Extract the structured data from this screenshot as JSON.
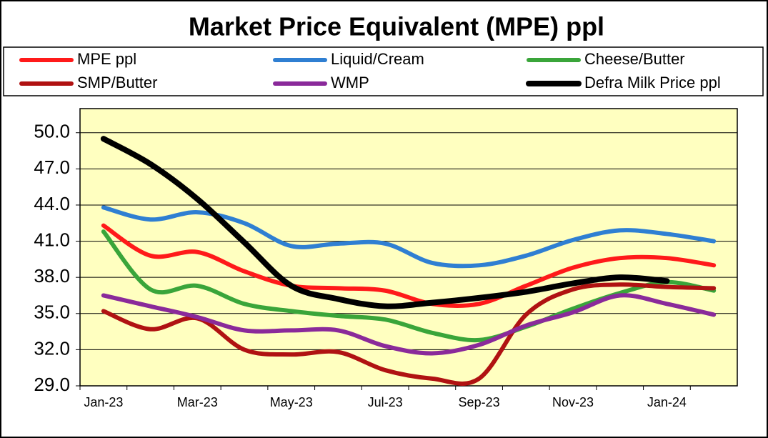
{
  "chart_data": {
    "type": "line",
    "title": "Market Price Equivalent (MPE) ppl",
    "categories": [
      "Jan-23",
      null,
      "Mar-23",
      null,
      "May-23",
      null,
      "Jul-23",
      null,
      "Sep-23",
      null,
      "Nov-23",
      null,
      "Jan-24",
      null
    ],
    "series": [
      {
        "name": "MPE ppl",
        "color": "#ff1a1a",
        "values": [
          42.3,
          39.8,
          40.1,
          38.5,
          37.3,
          37.1,
          36.9,
          35.8,
          35.8,
          37.3,
          38.8,
          39.6,
          39.6,
          39.0
        ]
      },
      {
        "name": "Liquid/Cream",
        "color": "#2f7fd2",
        "values": [
          43.8,
          42.8,
          43.4,
          42.5,
          40.6,
          40.8,
          40.8,
          39.2,
          39.0,
          39.8,
          41.1,
          41.9,
          41.6,
          41.0
        ]
      },
      {
        "name": "Cheese/Butter",
        "color": "#3aa53a",
        "values": [
          41.8,
          37.0,
          37.3,
          35.8,
          35.2,
          34.8,
          34.5,
          33.4,
          32.8,
          33.9,
          35.4,
          36.7,
          37.6,
          36.9
        ]
      },
      {
        "name": "SMP/Butter",
        "color": "#b01212",
        "values": [
          35.2,
          33.7,
          34.6,
          32.0,
          31.6,
          31.8,
          30.3,
          29.6,
          29.6,
          34.9,
          37.0,
          37.4,
          37.2,
          37.1
        ]
      },
      {
        "name": "WMP",
        "color": "#8a2a9a",
        "values": [
          36.5,
          35.6,
          34.7,
          33.6,
          33.6,
          33.6,
          32.3,
          31.7,
          32.4,
          34.0,
          35.1,
          36.5,
          35.8,
          34.9
        ]
      },
      {
        "name": "Defra Milk Price ppl",
        "color": "#000000",
        "values": [
          49.5,
          47.4,
          44.5,
          40.9,
          37.3,
          36.2,
          35.6,
          35.9,
          36.3,
          36.8,
          37.5,
          38.0,
          37.7,
          null
        ]
      }
    ],
    "ylim": [
      29,
      52
    ],
    "yticks": [
      {
        "value": 29,
        "label": "29.0"
      },
      {
        "value": 32,
        "label": "32.0"
      },
      {
        "value": 35,
        "label": "35.0"
      },
      {
        "value": 38,
        "label": "38.0"
      },
      {
        "value": 41,
        "label": "41.0"
      },
      {
        "value": 44,
        "label": "44.0"
      },
      {
        "value": 47,
        "label": "47.0"
      },
      {
        "value": 50,
        "label": "50.0"
      }
    ],
    "grid": true
  }
}
